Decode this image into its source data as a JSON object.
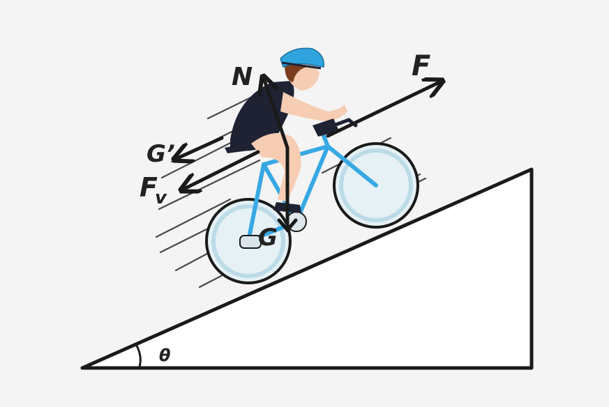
{
  "labels": {
    "normal_force": "N",
    "applied_force": "F",
    "gravity_component": "G’",
    "friction_force_main": "F",
    "friction_force_sub": "v",
    "gravity": "G",
    "incline_angle": "θ"
  },
  "colors": {
    "ink": "#1a1a1a",
    "background": "#f4f4f4",
    "helmet": "#2fa4de",
    "frame": "#37a8e4",
    "wheel": "#cfe6ef",
    "jersey": "#1f2233",
    "skin": "#f6cdb3",
    "hair": "#7a3e1e"
  }
}
